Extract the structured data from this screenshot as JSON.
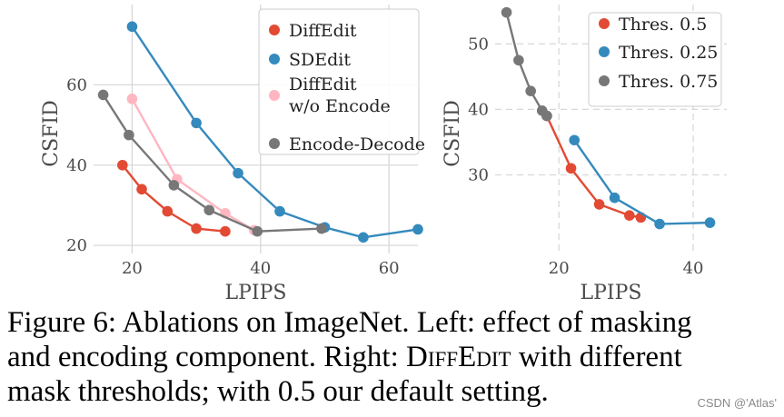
{
  "chart_data": [
    {
      "type": "line",
      "panel": "left",
      "xlabel": "LPIPS",
      "ylabel": "CSFID",
      "xlim": [
        14,
        64.5
      ],
      "ylim": [
        18,
        80
      ],
      "xticks": [
        20,
        40,
        60
      ],
      "yticks": [
        20,
        40,
        60
      ],
      "grid": "solid",
      "legend_position": "top-right",
      "series": [
        {
          "name": "DiffEdit",
          "color": "#e24a33",
          "x": [
            18.5,
            21.5,
            25.5,
            30.0,
            34.5
          ],
          "y": [
            40.0,
            34.0,
            28.5,
            24.2,
            23.5
          ]
        },
        {
          "name": "SDEdit",
          "color": "#348abd",
          "x": [
            20.0,
            30.0,
            36.5,
            43.0,
            50.0,
            56.0,
            64.5
          ],
          "y": [
            74.5,
            50.5,
            38.0,
            28.5,
            24.5,
            22.0,
            24.0
          ]
        },
        {
          "name": "DiffEdit w/o Encode",
          "color": "#ffb6c1",
          "x": [
            20.0,
            27.0,
            34.5,
            39.0
          ],
          "y": [
            56.5,
            36.5,
            28.0,
            23.8
          ]
        },
        {
          "name": "Encode-Decode",
          "color": "#777777",
          "x": [
            15.5,
            19.5,
            26.5,
            32.0,
            39.5,
            49.5
          ],
          "y": [
            57.5,
            47.5,
            35.0,
            28.8,
            23.5,
            24.2
          ]
        }
      ],
      "legend": [
        {
          "label": "DiffEdit",
          "color": "#e24a33"
        },
        {
          "label": "SDEdit",
          "color": "#348abd"
        },
        {
          "label": "DiffEdit",
          "label2": "w/o Encode",
          "color": "#ffb6c1"
        },
        {
          "label": "Encode-Decode",
          "color": "#777777"
        }
      ]
    },
    {
      "type": "line",
      "panel": "right",
      "xlabel": "LPIPS",
      "ylabel": "CSFID",
      "xlim": [
        10.5,
        45
      ],
      "ylim": [
        18,
        56
      ],
      "xticks": [
        20,
        40
      ],
      "yticks": [
        30,
        40,
        50
      ],
      "grid": "dashed",
      "legend_position": "top-right",
      "series": [
        {
          "name": "Thres. 0.5",
          "color": "#e24a33",
          "x": [
            18.2,
            21.8,
            26.0,
            30.5,
            32.2
          ],
          "y": [
            39.0,
            31.0,
            25.5,
            23.8,
            23.5
          ]
        },
        {
          "name": "Thres. 0.25",
          "color": "#348abd",
          "x": [
            22.3,
            28.3,
            35.0,
            42.5
          ],
          "y": [
            35.3,
            26.5,
            22.5,
            22.7
          ]
        },
        {
          "name": "Thres. 0.75",
          "color": "#777777",
          "x": [
            12.2,
            14.0,
            15.8,
            17.5,
            18.2
          ],
          "y": [
            54.8,
            47.5,
            42.8,
            39.8,
            39.0
          ]
        }
      ],
      "legend": [
        {
          "label": "Thres. 0.5",
          "color": "#e24a33"
        },
        {
          "label": "Thres. 0.25",
          "color": "#348abd"
        },
        {
          "label": "Thres. 0.75",
          "color": "#777777"
        }
      ]
    }
  ],
  "caption": {
    "line1": "Figure 6: Ablations on ImageNet. Left: effect of masking",
    "line2_a": "and encoding component. Right: ",
    "line2_sc": "DiffEdit",
    "line2_b": " with different",
    "line3": "mask thresholds; with 0.5 our default setting."
  },
  "watermark": "CSDN @'Atlas'"
}
